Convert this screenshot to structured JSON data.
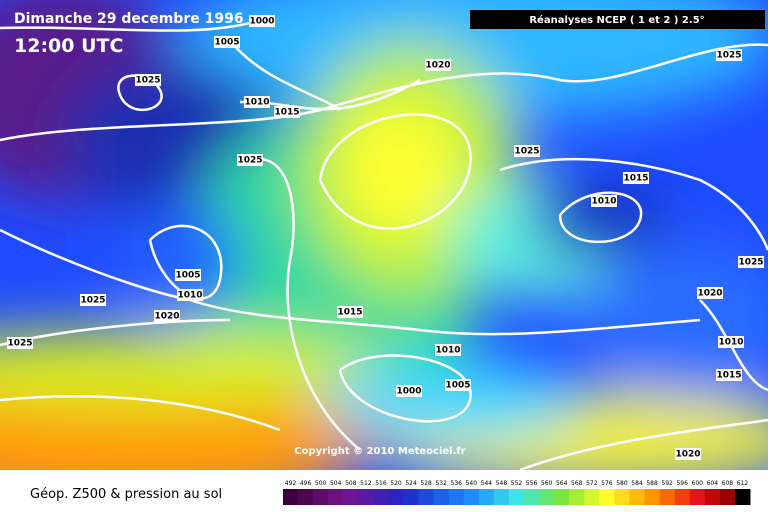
{
  "header": {
    "date": "Dimanche 29 decembre 1996",
    "time": "12:00 UTC",
    "source": "Réanalyses NCEP ( 1 et 2 ) 2.5°"
  },
  "copyright": "Copyright © 2010 Meteociel.fr",
  "legend": {
    "title": "Géop. Z500 & pression au sol",
    "labels": [
      492,
      496,
      500,
      504,
      508,
      512,
      516,
      520,
      524,
      528,
      532,
      536,
      540,
      544,
      548,
      552,
      556,
      560,
      564,
      568,
      572,
      576,
      580,
      584,
      588,
      592,
      596,
      600,
      604,
      608,
      612
    ]
  },
  "isobars": [
    1000,
    1005,
    1025,
    1010,
    1015,
    1020,
    1025,
    1025,
    1025,
    1015,
    1010,
    1005,
    1010,
    1025,
    1020,
    1015,
    1025,
    1020,
    1010,
    1010,
    1005,
    1000,
    1015,
    1020,
    1025
  ]
}
